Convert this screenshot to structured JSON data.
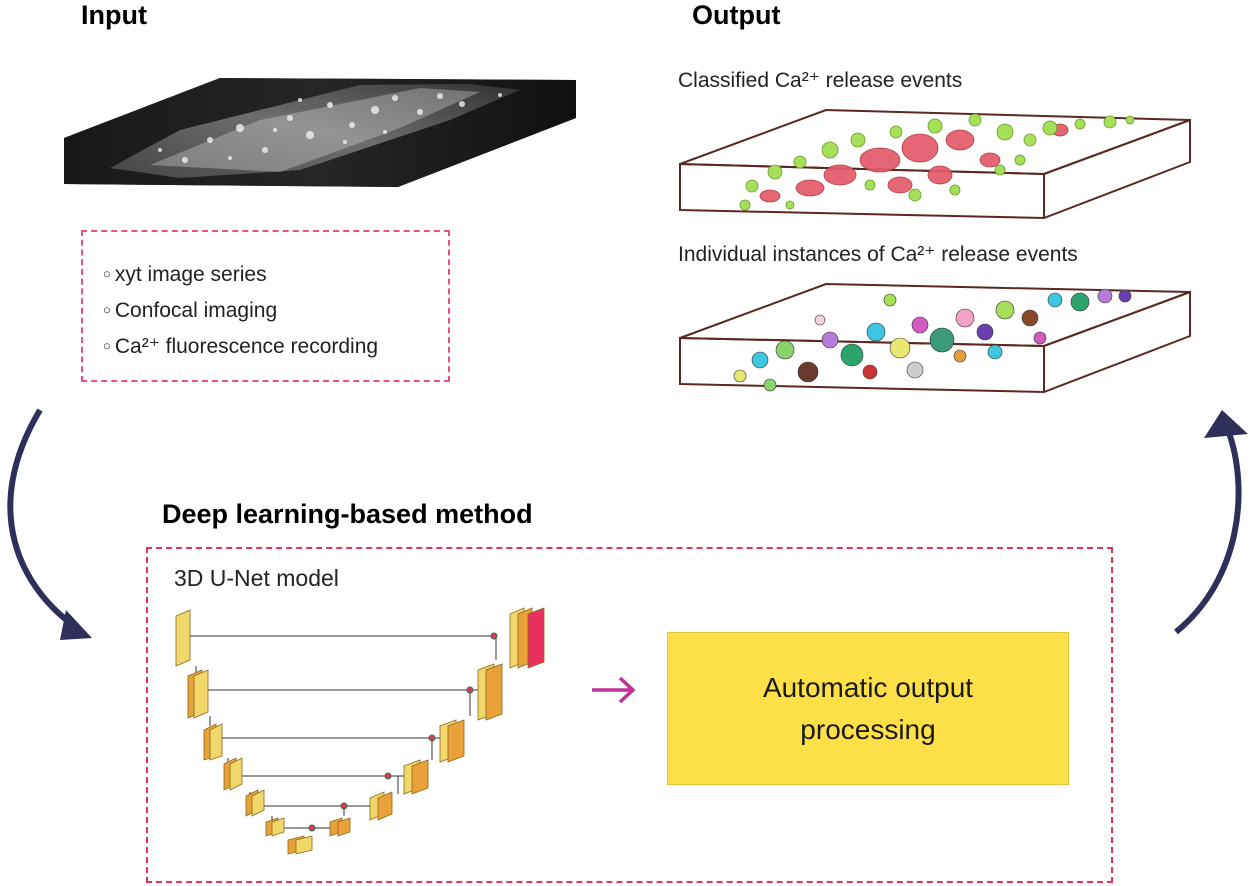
{
  "input": {
    "heading": "Input",
    "bullets": [
      "xyt image series",
      "Confocal imaging",
      "Ca²⁺ fluorescence recording"
    ]
  },
  "output": {
    "heading": "Output",
    "classified_caption": "Classified Ca²⁺ release events",
    "instances_caption": "Individual instances of Ca²⁺ release events"
  },
  "method": {
    "heading": "Deep learning-based method",
    "model_label": "3D U-Net model",
    "processing_label": "Automatic output processing"
  },
  "colors": {
    "dashed_border": "#e8315f",
    "bullet_border": "#ec4f86",
    "arrow_curve": "#2e2f5b",
    "arrow_small": "#c0309a",
    "processing_fill": "#fde047",
    "class_green": "#a6e05a",
    "class_red": "#e35b6b",
    "box_edge": "#5a2a22"
  }
}
